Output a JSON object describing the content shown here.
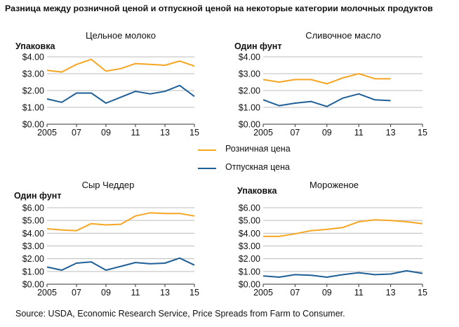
{
  "title": "Разница между розничной ценой и отпускной ценой на некоторые категории молочных продуктов",
  "legend": [
    {
      "label": "Розничная цена",
      "color": "#f5a623"
    },
    {
      "label": "Отпускная цена",
      "color": "#1f5f97"
    }
  ],
  "source": "Source: USDA, Economic Research Service, Price Spreads from Farm to Consumer.",
  "chart_data": [
    {
      "type": "line",
      "title": "Цельное молоко",
      "ylabel": "Упаковка",
      "x": [
        2005,
        2006,
        2007,
        2008,
        2009,
        2010,
        2011,
        2012,
        2013,
        2014,
        2015
      ],
      "xticks": [
        "2005",
        "07",
        "09",
        "11",
        "13",
        "15"
      ],
      "yticks": [
        "$0.00",
        "$1.00",
        "$2.00",
        "$3.00",
        "$4.00"
      ],
      "ylim": [
        0,
        4
      ],
      "xlim": [
        2005,
        2015
      ],
      "grid": true,
      "series": [
        {
          "name": "Розничная цена",
          "color": "#f5a623",
          "values": [
            3.2,
            3.1,
            3.55,
            3.85,
            3.15,
            3.3,
            3.6,
            3.55,
            3.5,
            3.75,
            3.45
          ]
        },
        {
          "name": "Отпускная цена",
          "color": "#1f5f97",
          "values": [
            1.5,
            1.3,
            1.85,
            1.85,
            1.25,
            1.6,
            1.95,
            1.8,
            1.95,
            2.3,
            1.65
          ]
        }
      ]
    },
    {
      "type": "line",
      "title": "Сливочное масло",
      "ylabel": "Один фунт",
      "x": [
        2005,
        2006,
        2007,
        2008,
        2009,
        2010,
        2011,
        2012,
        2013
      ],
      "xticks": [
        "2005",
        "07",
        "09",
        "11",
        "13",
        "15"
      ],
      "yticks": [
        "$0.00",
        "$1.00",
        "$2.00",
        "$3.00",
        "$4.00"
      ],
      "ylim": [
        0,
        4
      ],
      "xlim": [
        2005,
        2015
      ],
      "grid": true,
      "series": [
        {
          "name": "Розничная цена",
          "color": "#f5a623",
          "values": [
            2.65,
            2.5,
            2.65,
            2.65,
            2.4,
            2.75,
            3.0,
            2.7,
            2.7
          ]
        },
        {
          "name": "Отпускная цена",
          "color": "#1f5f97",
          "values": [
            1.45,
            1.1,
            1.25,
            1.35,
            1.05,
            1.55,
            1.8,
            1.45,
            1.4
          ]
        }
      ]
    },
    {
      "type": "line",
      "title": "Сыр Чеддер",
      "ylabel": "Один фунт",
      "x": [
        2005,
        2006,
        2007,
        2008,
        2009,
        2010,
        2011,
        2012,
        2013,
        2014,
        2015
      ],
      "xticks": [
        "2005",
        "07",
        "09",
        "11",
        "13",
        "15"
      ],
      "yticks": [
        "$0.00",
        "$1.00",
        "$2.00",
        "$3.00",
        "$4.00",
        "$5.00",
        "$6.00"
      ],
      "ylim": [
        0,
        6
      ],
      "xlim": [
        2005,
        2015
      ],
      "grid": true,
      "series": [
        {
          "name": "Розничная цена",
          "color": "#f5a623",
          "values": [
            4.35,
            4.25,
            4.2,
            4.75,
            4.65,
            4.7,
            5.35,
            5.6,
            5.55,
            5.55,
            5.35
          ]
        },
        {
          "name": "Отпускная цена",
          "color": "#1f5f97",
          "values": [
            1.35,
            1.1,
            1.65,
            1.75,
            1.1,
            1.4,
            1.7,
            1.6,
            1.65,
            2.05,
            1.5
          ]
        }
      ]
    },
    {
      "type": "line",
      "title": "Мороженое",
      "ylabel": "Упаковка",
      "x": [
        2005,
        2006,
        2007,
        2008,
        2009,
        2010,
        2011,
        2012,
        2013,
        2014,
        2015
      ],
      "xticks": [
        "2005",
        "07",
        "09",
        "11",
        "13",
        "15"
      ],
      "yticks": [
        "$0.00",
        "$1.00",
        "$2.00",
        "$3.00",
        "$4.00",
        "$5.00",
        "$6.00"
      ],
      "ylim": [
        0,
        6
      ],
      "xlim": [
        2005,
        2015
      ],
      "grid": true,
      "series": [
        {
          "name": "Розничная цена",
          "color": "#f5a623",
          "values": [
            3.75,
            3.75,
            3.95,
            4.2,
            4.3,
            4.45,
            4.9,
            5.05,
            5.0,
            4.9,
            4.75
          ]
        },
        {
          "name": "Отпускная цена",
          "color": "#1f5f97",
          "values": [
            0.65,
            0.55,
            0.75,
            0.7,
            0.55,
            0.75,
            0.9,
            0.75,
            0.8,
            1.05,
            0.85
          ]
        }
      ]
    }
  ]
}
